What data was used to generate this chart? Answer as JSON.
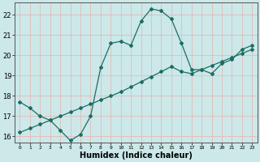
{
  "title": "",
  "xlabel": "Humidex (Indice chaleur)",
  "ylabel": "",
  "bg_color": "#cce8e8",
  "line_color": "#1a6e64",
  "grid_color": "#b0d8d8",
  "x_min": -0.5,
  "x_max": 23.5,
  "y_min": 15.7,
  "y_max": 22.6,
  "series1_x": [
    0,
    1,
    2,
    3,
    4,
    5,
    6,
    7,
    8,
    9,
    10,
    11,
    12,
    13,
    14,
    15,
    16,
    17,
    18,
    19,
    20,
    21,
    22,
    23
  ],
  "series1_y": [
    17.7,
    17.4,
    17.0,
    16.8,
    16.3,
    15.8,
    16.1,
    17.0,
    19.4,
    20.6,
    20.7,
    20.5,
    21.7,
    22.3,
    22.2,
    21.8,
    20.6,
    19.3,
    19.3,
    19.1,
    19.6,
    19.8,
    20.3,
    20.5
  ],
  "series2_x": [
    0,
    1,
    2,
    3,
    4,
    5,
    6,
    7,
    8,
    9,
    10,
    11,
    12,
    13,
    14,
    15,
    16,
    17,
    18,
    19,
    20,
    21,
    22,
    23
  ],
  "series2_y": [
    16.2,
    16.4,
    16.6,
    16.8,
    17.0,
    17.2,
    17.4,
    17.6,
    17.8,
    18.0,
    18.2,
    18.45,
    18.7,
    18.95,
    19.2,
    19.45,
    19.2,
    19.1,
    19.3,
    19.5,
    19.7,
    19.9,
    20.1,
    20.3
  ],
  "yticks": [
    16,
    17,
    18,
    19,
    20,
    21,
    22
  ],
  "xtick_labels": [
    "0",
    "1",
    "2",
    "3",
    "4",
    "5",
    "6",
    "7",
    "8",
    "9",
    "10",
    "11",
    "12",
    "13",
    "14",
    "15",
    "16",
    "17",
    "18",
    "19",
    "20",
    "21",
    "22",
    "23"
  ]
}
